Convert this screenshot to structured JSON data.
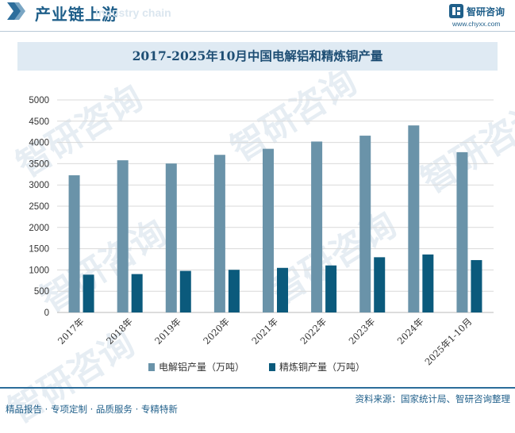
{
  "header": {
    "section_title": "产业链上游",
    "watermark_text": "Industry chain",
    "brand_name": "智研咨询",
    "brand_url": "www.chyxx.com"
  },
  "chart_data": {
    "type": "bar",
    "title": "2017-2025年10月中国电解铝和精炼铜产量",
    "categories": [
      "2017年",
      "2018年",
      "2019年",
      "2020年",
      "2021年",
      "2022年",
      "2023年",
      "2024年",
      "2025年1-10月"
    ],
    "series": [
      {
        "name": "电解铝产量（万吨）",
        "color": "#6a93a9",
        "values": [
          3227,
          3580,
          3504,
          3708,
          3850,
          4021,
          4159,
          4400,
          3771
        ]
      },
      {
        "name": "精炼铜产量（万吨）",
        "color": "#0b5a7c",
        "values": [
          889,
          903,
          978,
          1003,
          1049,
          1106,
          1299,
          1364,
          1232
        ]
      }
    ],
    "ylim": [
      0,
      5000
    ],
    "yticks": [
      0,
      500,
      1000,
      1500,
      2000,
      2500,
      3000,
      3500,
      4000,
      4500,
      5000
    ],
    "xlabel": "",
    "ylabel": "",
    "grid": true,
    "legend": "bottom"
  },
  "footer": {
    "tagline": "精品报告 · 专项定制 · 品质服务 · 专精特新",
    "source": "资料来源：国家统计局、智研咨询整理"
  },
  "watermarks": [
    "智研咨询",
    "智研咨询",
    "智研咨询",
    "智研咨询",
    "智研咨询",
    "智研咨询"
  ]
}
